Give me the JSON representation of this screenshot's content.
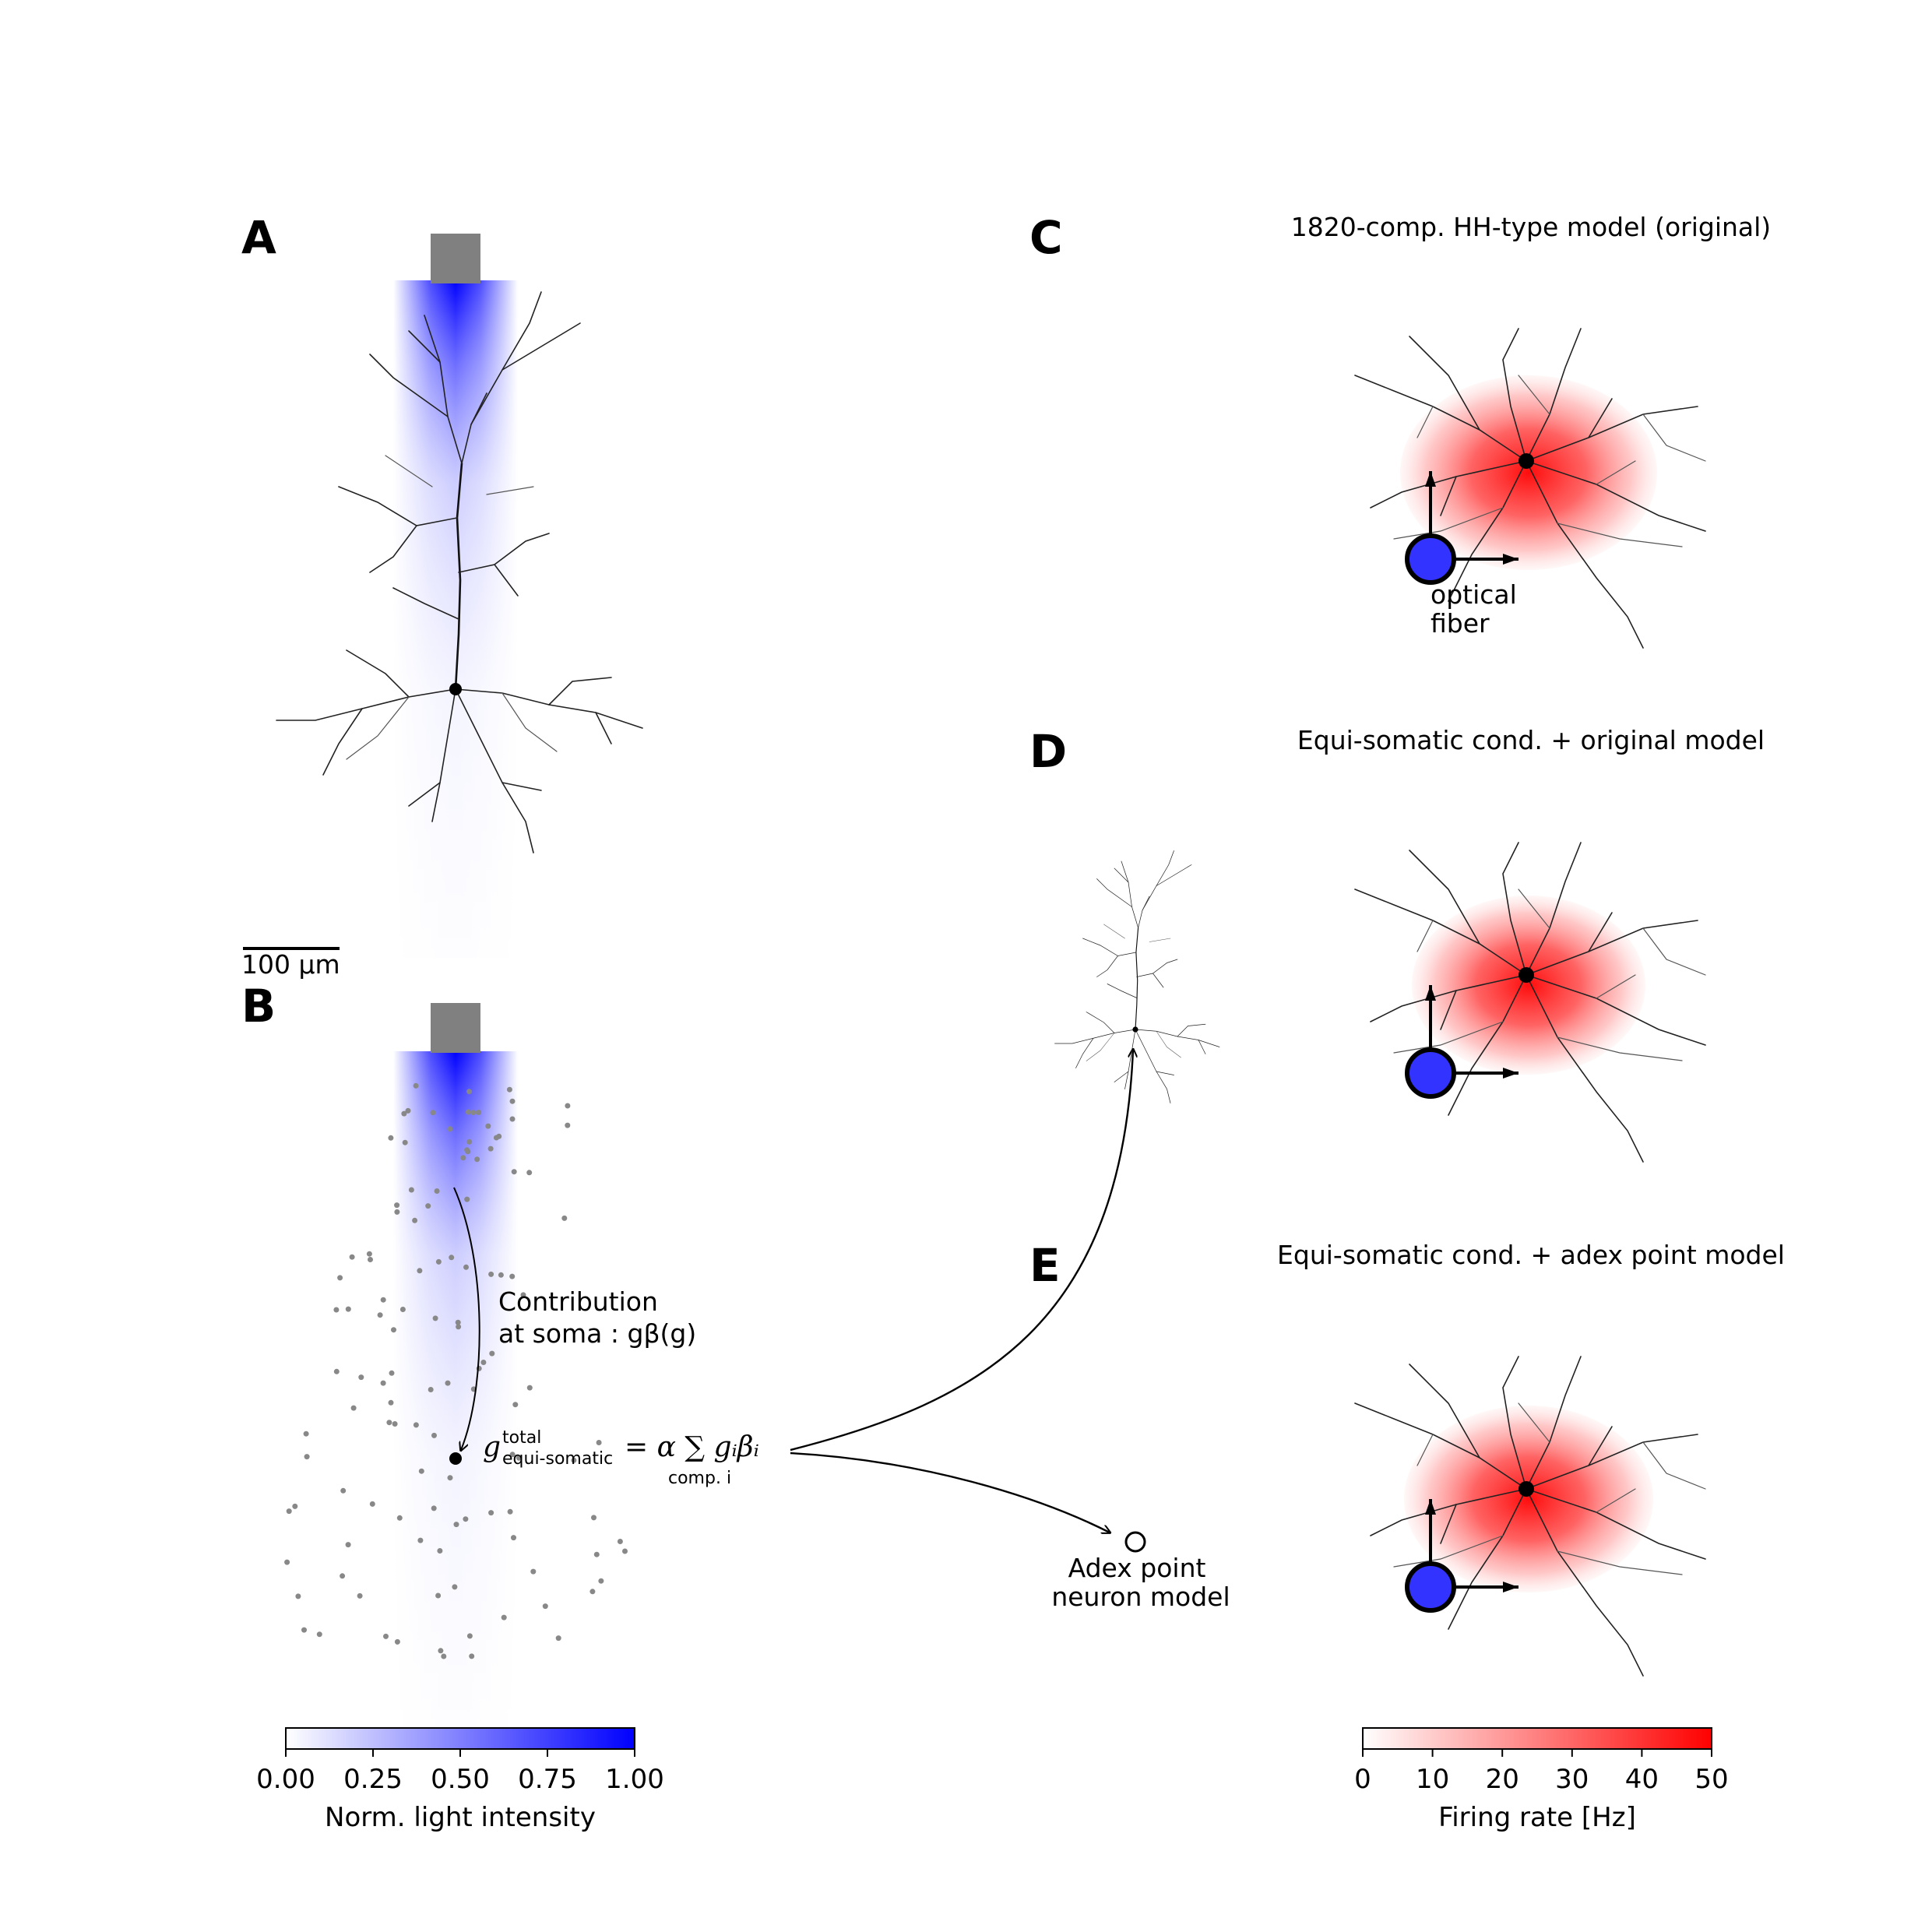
{
  "panels": {
    "A": {
      "label": "A",
      "scalebar_label": "100 µm"
    },
    "B": {
      "label": "B",
      "contribution_line1": "Contribution",
      "contribution_line2": "at soma : gβ(g)",
      "equation": {
        "g": "g",
        "sup": "total",
        "sub": "equi-somatic",
        "rhs": "= α ∑ gᵢβᵢ",
        "sum_index": "comp. i"
      }
    },
    "C": {
      "label": "C",
      "title": "1820-comp. HH-type model (original)",
      "fiber_label_line1": "optical",
      "fiber_label_line2": "fiber"
    },
    "D": {
      "label": "D",
      "title": "Equi-somatic cond. + original model"
    },
    "E": {
      "label": "E",
      "title": "Equi-somatic cond. + adex point model",
      "adex_line1": "Adex point",
      "adex_line2": "neuron model"
    }
  },
  "colorbars": {
    "light": {
      "label": "Norm. light intensity",
      "ticks": [
        "0.00",
        "0.25",
        "0.50",
        "0.75",
        "1.00"
      ],
      "color_min": "#ffffff",
      "color_max": "#0000ff"
    },
    "firing": {
      "label": "Firing rate [Hz]",
      "ticks": [
        "0",
        "10",
        "20",
        "30",
        "40",
        "50"
      ],
      "color_min": "#ffffff",
      "color_max": "#ff0000"
    }
  },
  "colors": {
    "fiber_tip": "#808080",
    "light": "#0000ff",
    "fiber_marker": "#3333ff",
    "firing": "#ff0000"
  }
}
